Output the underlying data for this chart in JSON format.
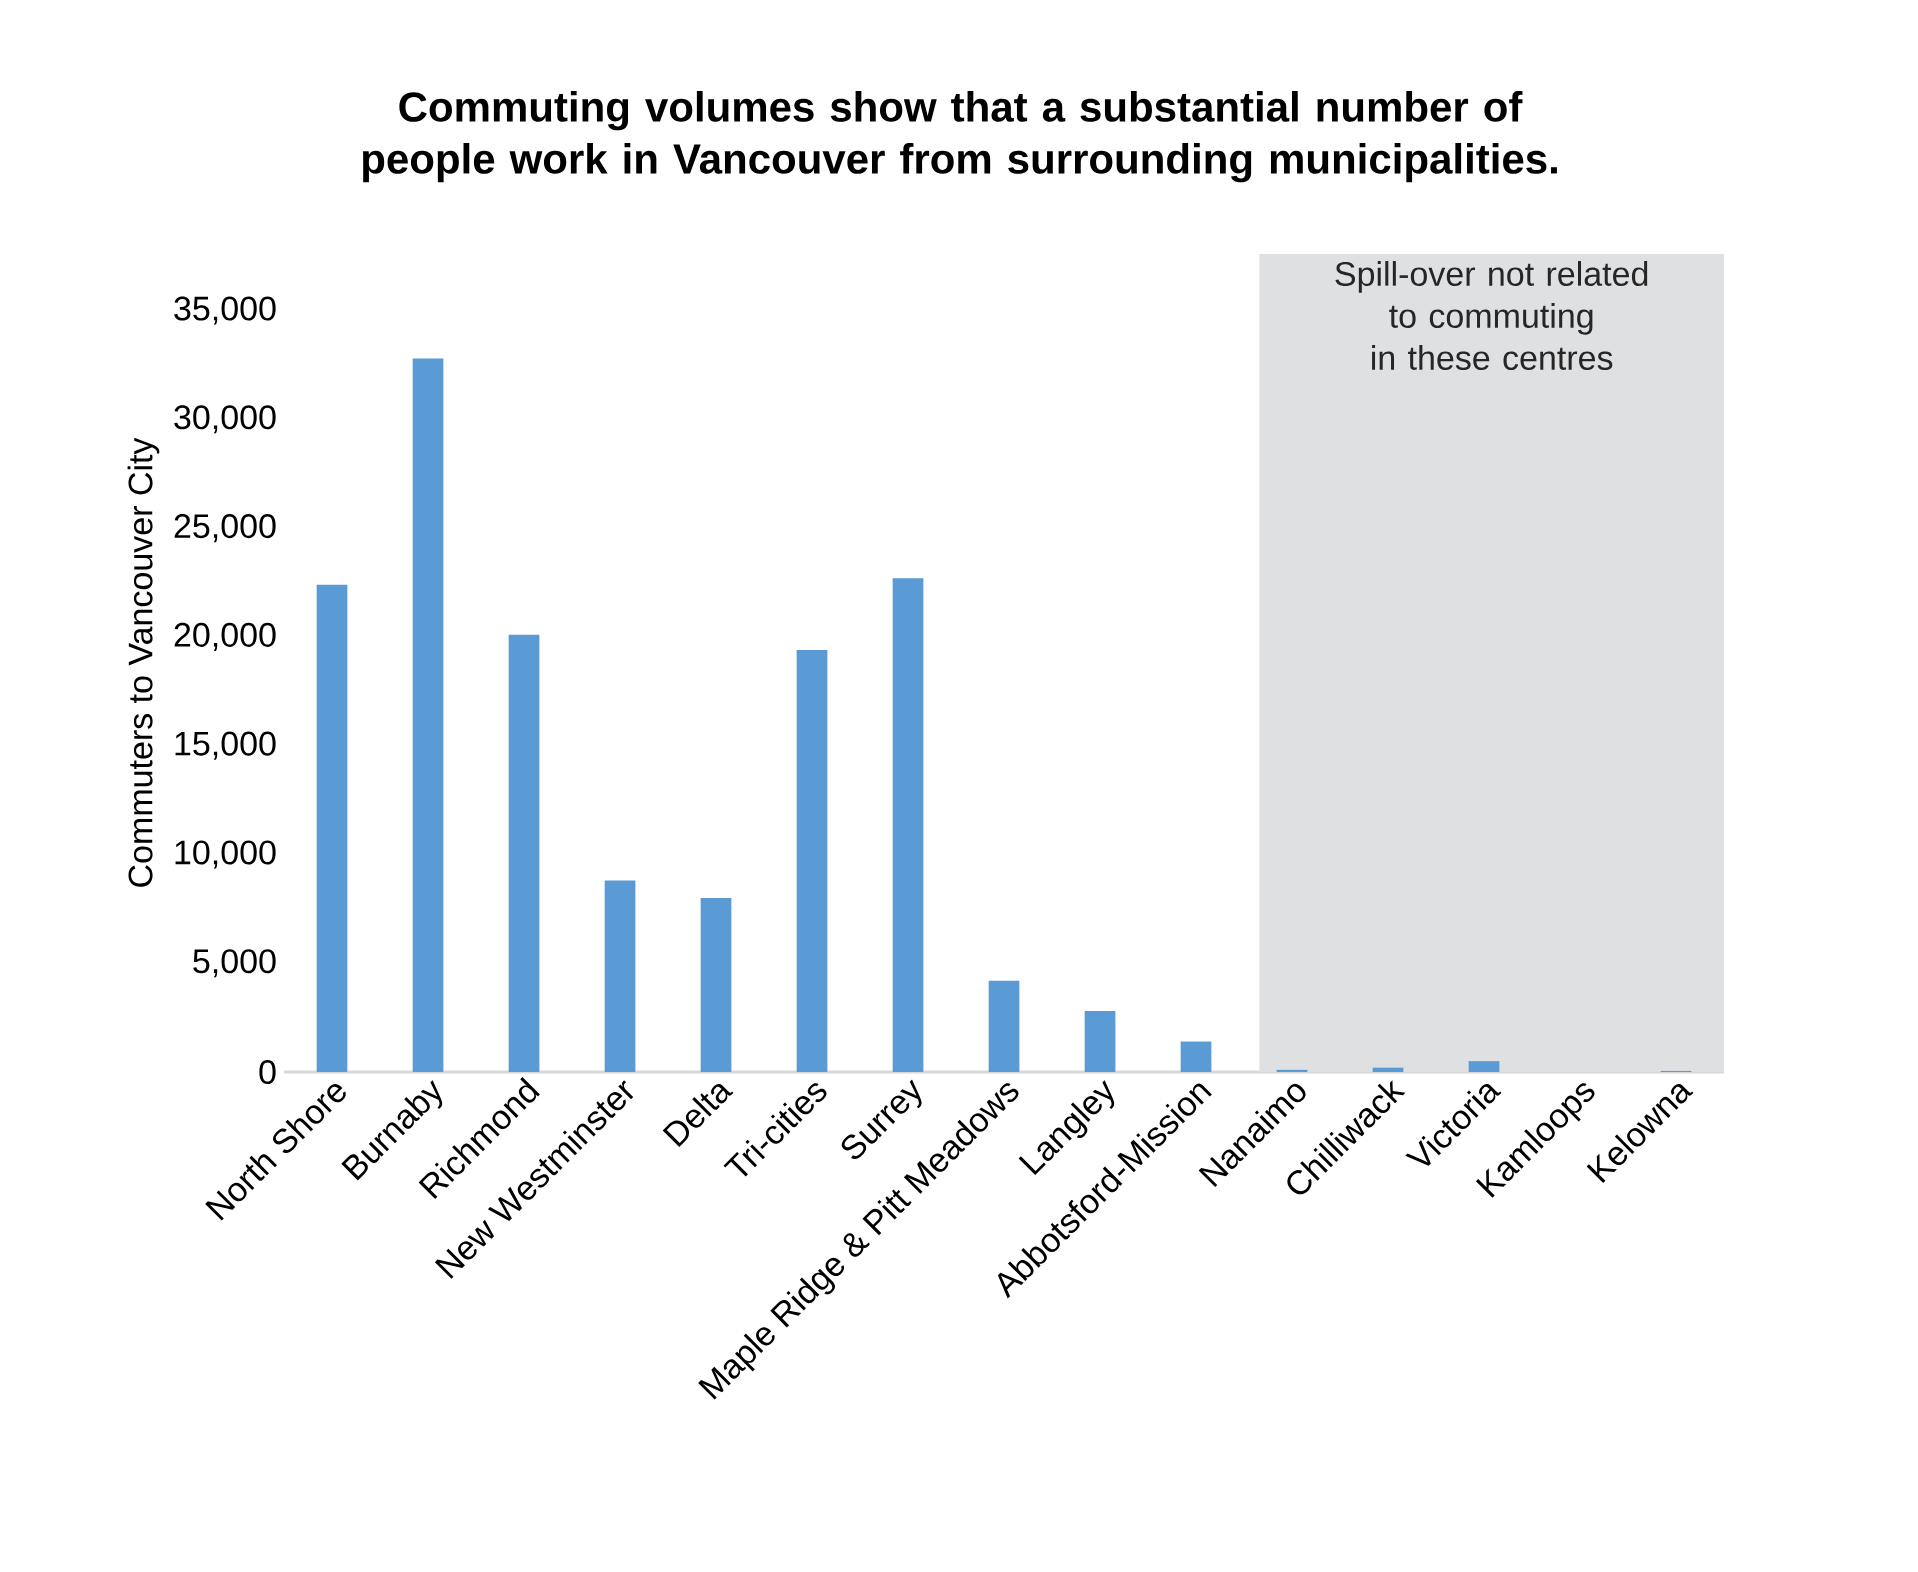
{
  "chart_data": {
    "type": "bar",
    "title": "Commuting volumes show that a substantial number of people work in Vancouver from surrounding municipalities.",
    "ylabel": "Commuters to Vancouver City",
    "categories": [
      "North Shore",
      "Burnaby",
      "Richmond",
      "New Westminster",
      "Delta",
      "Tri-cities",
      "Surrey",
      "Maple Ridge & Pitt Meadows",
      "Langley",
      "Abbotsford-Mission",
      "Nanaimo",
      "Chilliwack",
      "Victoria",
      "Kamloops",
      "Kelowna"
    ],
    "values": [
      22400,
      32800,
      20100,
      8800,
      8000,
      19400,
      22700,
      4200,
      2800,
      1400,
      100,
      200,
      500,
      0,
      50
    ],
    "color": "#5b9bd5",
    "ylim": [
      0,
      37600
    ],
    "yticks": [
      {
        "value": 0,
        "label": "0"
      },
      {
        "value": 5000,
        "label": "5,000"
      },
      {
        "value": 10000,
        "label": "10,000"
      },
      {
        "value": 15000,
        "label": "15,000"
      },
      {
        "value": 20000,
        "label": "20,000"
      },
      {
        "value": 25000,
        "label": "25,000"
      },
      {
        "value": 30000,
        "label": "30,000"
      },
      {
        "value": 35000,
        "label": "35,000"
      }
    ],
    "bands": [
      {
        "axis": "x",
        "from": "Nanaimo",
        "to": "Kelowna",
        "label": "Spill-over not related to commuting in these centres",
        "color": "#dfe0e2"
      }
    ]
  }
}
